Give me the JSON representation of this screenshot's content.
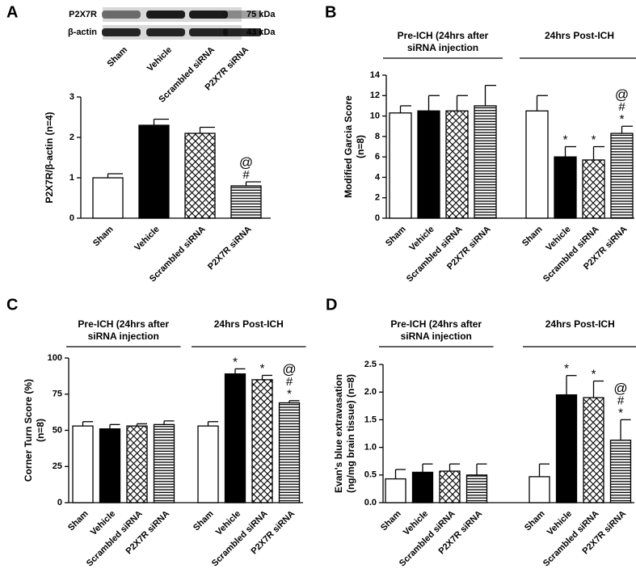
{
  "chart_data": [
    {
      "panel": "A",
      "type": "bar",
      "ylabel": [
        "P2X7R/β-actin (n=4)"
      ],
      "ylim": [
        0,
        3
      ],
      "yticks": [
        0,
        1,
        2,
        3
      ],
      "blot": {
        "bands": [
          {
            "protein": "P2X7R",
            "size": "75 kDa"
          },
          {
            "protein": "β-actin",
            "size": "43 kDa"
          }
        ]
      },
      "patterns": [
        "white",
        "black",
        "crosshatch",
        "hlines"
      ],
      "groups": [
        {
          "categories": [
            "Sham",
            "Vehicle",
            "Scrambled siRNA",
            "P2X7R siRNA"
          ],
          "values": [
            1.0,
            2.3,
            2.1,
            0.8
          ],
          "errors": [
            0.1,
            0.15,
            0.15,
            0.1
          ],
          "annotations": [
            null,
            null,
            null,
            [
              "#",
              "@"
            ]
          ]
        }
      ]
    },
    {
      "panel": "B",
      "type": "bar",
      "ylabel": [
        "Modified Garcia Score",
        "(n=8)"
      ],
      "ylim": [
        0,
        14
      ],
      "yticks": [
        0,
        2,
        4,
        6,
        8,
        10,
        12,
        14
      ],
      "patterns": [
        "white",
        "black",
        "crosshatch",
        "hlines"
      ],
      "groups": [
        {
          "title": [
            "Pre-ICH (24hrs after",
            "siRNA injection"
          ],
          "categories": [
            "Sham",
            "Vehicle",
            "Scrambled siRNA",
            "P2X7R siRNA"
          ],
          "values": [
            10.3,
            10.5,
            10.5,
            11.0
          ],
          "errors": [
            0.7,
            1.5,
            1.5,
            2.0
          ],
          "annotations": [
            null,
            null,
            null,
            null
          ]
        },
        {
          "title": [
            "24hrs Post-ICH"
          ],
          "categories": [
            "Sham",
            "Vehicle",
            "Scrambled siRNA",
            "P2X7R siRNA"
          ],
          "values": [
            10.5,
            6.0,
            5.7,
            8.3
          ],
          "errors": [
            1.5,
            1.0,
            1.3,
            0.7
          ],
          "annotations": [
            null,
            [
              "*"
            ],
            [
              "*"
            ],
            [
              "*",
              "#",
              "@"
            ]
          ]
        }
      ]
    },
    {
      "panel": "C",
      "type": "bar",
      "ylabel": [
        "Corner Turn Score (%)",
        "(n=8)"
      ],
      "ylim": [
        0,
        100
      ],
      "yticks": [
        0,
        25,
        50,
        75,
        100
      ],
      "patterns": [
        "white",
        "black",
        "crosshatch",
        "hlines"
      ],
      "groups": [
        {
          "title": [
            "Pre-ICH (24hrs after",
            "siRNA injection"
          ],
          "categories": [
            "Sham",
            "Vehicle",
            "Scrambled siRNA",
            "P2X7R siRNA"
          ],
          "values": [
            53,
            51,
            53,
            54
          ],
          "errors": [
            3,
            3,
            1.5,
            2.5
          ],
          "annotations": [
            null,
            null,
            null,
            null
          ]
        },
        {
          "title": [
            "24hrs Post-ICH"
          ],
          "categories": [
            "Sham",
            "Vehicle",
            "Scrambled siRNA",
            "P2X7R siRNA"
          ],
          "values": [
            53,
            89,
            85,
            69
          ],
          "errors": [
            3,
            3.5,
            3,
            1.5
          ],
          "annotations": [
            null,
            [
              "*"
            ],
            [
              "*"
            ],
            [
              "*",
              "#",
              "@"
            ]
          ]
        }
      ]
    },
    {
      "panel": "D",
      "type": "bar",
      "ylabel": [
        "Evan's blue extravasation",
        "(ng/mg brain tissue) (n=8)"
      ],
      "ylim": [
        0,
        2.5
      ],
      "yticks": [
        {
          "value": 0,
          "label": "0.0"
        },
        {
          "value": 0.5,
          "label": "0.5"
        },
        {
          "value": 1,
          "label": "1.0"
        },
        {
          "value": 1.5,
          "label": "1.5"
        },
        {
          "value": 2,
          "label": "2.0"
        },
        {
          "value": 2.5,
          "label": "2.5"
        }
      ],
      "patterns": [
        "white",
        "black",
        "crosshatch",
        "hlines"
      ],
      "groups": [
        {
          "title": [
            "Pre-ICH (24hrs after",
            "siRNA injection"
          ],
          "categories": [
            "Sham",
            "Vehicle",
            "Scrambled siRNA",
            "P2X7R siRNA"
          ],
          "values": [
            0.43,
            0.55,
            0.57,
            0.5
          ],
          "errors": [
            0.17,
            0.15,
            0.13,
            0.2
          ],
          "annotations": [
            null,
            null,
            null,
            null
          ]
        },
        {
          "title": [
            "24hrs Post-ICH"
          ],
          "categories": [
            "Sham",
            "Vehicle",
            "Scrambled siRNA",
            "P2X7R siRNA"
          ],
          "values": [
            0.47,
            1.95,
            1.9,
            1.13
          ],
          "errors": [
            0.23,
            0.35,
            0.3,
            0.37
          ],
          "annotations": [
            null,
            [
              "*"
            ],
            [
              "*"
            ],
            [
              "*",
              "#",
              "@"
            ]
          ]
        }
      ]
    }
  ]
}
